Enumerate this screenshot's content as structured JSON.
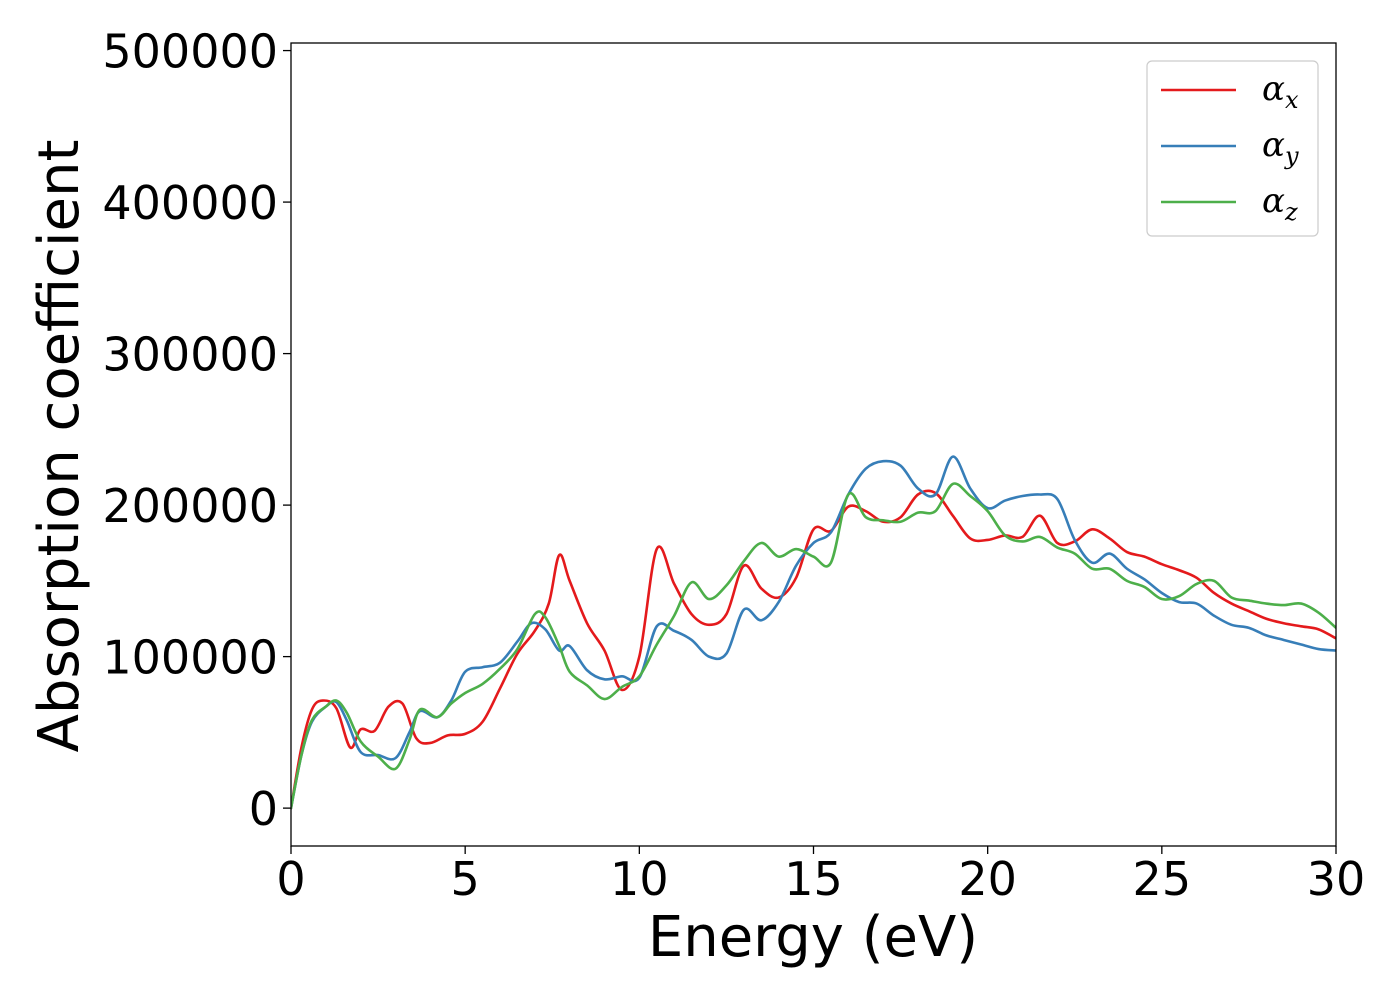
{
  "chart_data": {
    "type": "line",
    "title": "",
    "xlabel": "Energy (eV)",
    "ylabel": "Absorption coefficient",
    "xlim": [
      0,
      30
    ],
    "ylim": [
      -25000,
      505000
    ],
    "xticks": [
      "0",
      "5",
      "10",
      "15",
      "20",
      "25",
      "30"
    ],
    "yticks": [
      "0",
      "100000",
      "200000",
      "300000",
      "400000",
      "500000"
    ],
    "grid": false,
    "legend_position": "top-right",
    "series": [
      {
        "name": "α_x",
        "legend_base": "α",
        "legend_sub": "x",
        "color": "#e41a1c",
        "points": [
          [
            0,
            0
          ],
          [
            0.3,
            40000
          ],
          [
            0.6,
            65000
          ],
          [
            0.9,
            71000
          ],
          [
            1.3,
            66000
          ],
          [
            1.7,
            40000
          ],
          [
            2.0,
            52000
          ],
          [
            2.4,
            51000
          ],
          [
            2.8,
            67000
          ],
          [
            3.2,
            69000
          ],
          [
            3.6,
            46000
          ],
          [
            4.0,
            43000
          ],
          [
            4.5,
            48000
          ],
          [
            5.0,
            49000
          ],
          [
            5.5,
            57000
          ],
          [
            6.0,
            79000
          ],
          [
            6.5,
            102000
          ],
          [
            7.0,
            117000
          ],
          [
            7.4,
            135000
          ],
          [
            7.7,
            167000
          ],
          [
            8.0,
            150000
          ],
          [
            8.5,
            122000
          ],
          [
            9.0,
            104000
          ],
          [
            9.5,
            78000
          ],
          [
            10.0,
            100000
          ],
          [
            10.5,
            171000
          ],
          [
            11.0,
            148000
          ],
          [
            11.5,
            128000
          ],
          [
            12.0,
            121000
          ],
          [
            12.5,
            128000
          ],
          [
            13.0,
            160000
          ],
          [
            13.5,
            145000
          ],
          [
            14.0,
            139000
          ],
          [
            14.5,
            152000
          ],
          [
            15.0,
            184000
          ],
          [
            15.5,
            183000
          ],
          [
            16.0,
            199000
          ],
          [
            16.5,
            196000
          ],
          [
            17.0,
            189000
          ],
          [
            17.5,
            192000
          ],
          [
            18.0,
            207000
          ],
          [
            18.5,
            208000
          ],
          [
            19.0,
            193000
          ],
          [
            19.5,
            178000
          ],
          [
            20.0,
            177000
          ],
          [
            20.5,
            180000
          ],
          [
            21.0,
            179000
          ],
          [
            21.5,
            193000
          ],
          [
            22.0,
            175000
          ],
          [
            22.5,
            176000
          ],
          [
            23.0,
            184000
          ],
          [
            23.5,
            178000
          ],
          [
            24.0,
            169000
          ],
          [
            24.5,
            166000
          ],
          [
            25.0,
            161000
          ],
          [
            25.5,
            157000
          ],
          [
            26.0,
            152000
          ],
          [
            26.5,
            142000
          ],
          [
            27.0,
            135000
          ],
          [
            27.5,
            130000
          ],
          [
            28.0,
            125000
          ],
          [
            28.5,
            122000
          ],
          [
            29.0,
            120000
          ],
          [
            29.5,
            118000
          ],
          [
            30.0,
            112000
          ]
        ]
      },
      {
        "name": "α_y",
        "legend_base": "α",
        "legend_sub": "y",
        "color": "#377eb8",
        "points": [
          [
            0,
            0
          ],
          [
            0.3,
            35000
          ],
          [
            0.6,
            57000
          ],
          [
            1.0,
            67000
          ],
          [
            1.3,
            70000
          ],
          [
            1.6,
            58000
          ],
          [
            2.0,
            37000
          ],
          [
            2.5,
            35000
          ],
          [
            3.0,
            33000
          ],
          [
            3.4,
            50000
          ],
          [
            3.7,
            64000
          ],
          [
            4.2,
            60000
          ],
          [
            4.6,
            71000
          ],
          [
            5.0,
            90000
          ],
          [
            5.5,
            93000
          ],
          [
            6.0,
            96000
          ],
          [
            6.5,
            110000
          ],
          [
            6.9,
            122000
          ],
          [
            7.3,
            118000
          ],
          [
            7.7,
            104000
          ],
          [
            8.0,
            107000
          ],
          [
            8.5,
            91000
          ],
          [
            9.0,
            85000
          ],
          [
            9.5,
            87000
          ],
          [
            10.0,
            86000
          ],
          [
            10.5,
            120000
          ],
          [
            11.0,
            117000
          ],
          [
            11.5,
            111000
          ],
          [
            12.0,
            100000
          ],
          [
            12.5,
            102000
          ],
          [
            13.0,
            131000
          ],
          [
            13.5,
            124000
          ],
          [
            14.0,
            136000
          ],
          [
            14.5,
            160000
          ],
          [
            15.0,
            175000
          ],
          [
            15.5,
            182000
          ],
          [
            16.0,
            207000
          ],
          [
            16.5,
            224000
          ],
          [
            17.0,
            229000
          ],
          [
            17.5,
            226000
          ],
          [
            18.0,
            211000
          ],
          [
            18.5,
            207000
          ],
          [
            19.0,
            232000
          ],
          [
            19.5,
            211000
          ],
          [
            20.0,
            198000
          ],
          [
            20.5,
            203000
          ],
          [
            21.0,
            206000
          ],
          [
            21.5,
            207000
          ],
          [
            22.0,
            204000
          ],
          [
            22.5,
            177000
          ],
          [
            23.0,
            162000
          ],
          [
            23.5,
            168000
          ],
          [
            24.0,
            158000
          ],
          [
            24.5,
            151000
          ],
          [
            25.0,
            142000
          ],
          [
            25.5,
            136000
          ],
          [
            26.0,
            135000
          ],
          [
            26.5,
            127000
          ],
          [
            27.0,
            121000
          ],
          [
            27.5,
            119000
          ],
          [
            28.0,
            114000
          ],
          [
            28.5,
            111000
          ],
          [
            29.0,
            108000
          ],
          [
            29.5,
            105000
          ],
          [
            30.0,
            104000
          ]
        ]
      },
      {
        "name": "α_z",
        "legend_base": "α",
        "legend_sub": "z",
        "color": "#4daf4a",
        "points": [
          [
            0,
            0
          ],
          [
            0.3,
            35000
          ],
          [
            0.6,
            58000
          ],
          [
            1.0,
            67000
          ],
          [
            1.3,
            71000
          ],
          [
            1.6,
            63000
          ],
          [
            2.0,
            44000
          ],
          [
            2.5,
            34000
          ],
          [
            3.0,
            26000
          ],
          [
            3.4,
            45000
          ],
          [
            3.7,
            65000
          ],
          [
            4.2,
            60000
          ],
          [
            4.6,
            69000
          ],
          [
            5.0,
            76000
          ],
          [
            5.5,
            82000
          ],
          [
            6.0,
            92000
          ],
          [
            6.5,
            105000
          ],
          [
            7.0,
            128000
          ],
          [
            7.3,
            126000
          ],
          [
            7.7,
            107000
          ],
          [
            8.0,
            90000
          ],
          [
            8.5,
            81000
          ],
          [
            9.0,
            72000
          ],
          [
            9.5,
            80000
          ],
          [
            10.0,
            87000
          ],
          [
            10.5,
            108000
          ],
          [
            11.0,
            127000
          ],
          [
            11.5,
            149000
          ],
          [
            12.0,
            138000
          ],
          [
            12.5,
            147000
          ],
          [
            13.0,
            163000
          ],
          [
            13.5,
            175000
          ],
          [
            14.0,
            166000
          ],
          [
            14.5,
            171000
          ],
          [
            15.0,
            166000
          ],
          [
            15.5,
            162000
          ],
          [
            16.0,
            207000
          ],
          [
            16.5,
            192000
          ],
          [
            17.0,
            190000
          ],
          [
            17.5,
            189000
          ],
          [
            18.0,
            195000
          ],
          [
            18.5,
            196000
          ],
          [
            19.0,
            214000
          ],
          [
            19.5,
            206000
          ],
          [
            20.0,
            196000
          ],
          [
            20.5,
            180000
          ],
          [
            21.0,
            176000
          ],
          [
            21.5,
            179000
          ],
          [
            22.0,
            172000
          ],
          [
            22.5,
            168000
          ],
          [
            23.0,
            158000
          ],
          [
            23.5,
            158000
          ],
          [
            24.0,
            150000
          ],
          [
            24.5,
            146000
          ],
          [
            25.0,
            138000
          ],
          [
            25.5,
            140000
          ],
          [
            26.0,
            148000
          ],
          [
            26.5,
            150000
          ],
          [
            27.0,
            139000
          ],
          [
            27.5,
            137000
          ],
          [
            28.0,
            135000
          ],
          [
            28.5,
            134000
          ],
          [
            29.0,
            135000
          ],
          [
            29.5,
            129000
          ],
          [
            30.0,
            119000
          ]
        ]
      }
    ]
  }
}
